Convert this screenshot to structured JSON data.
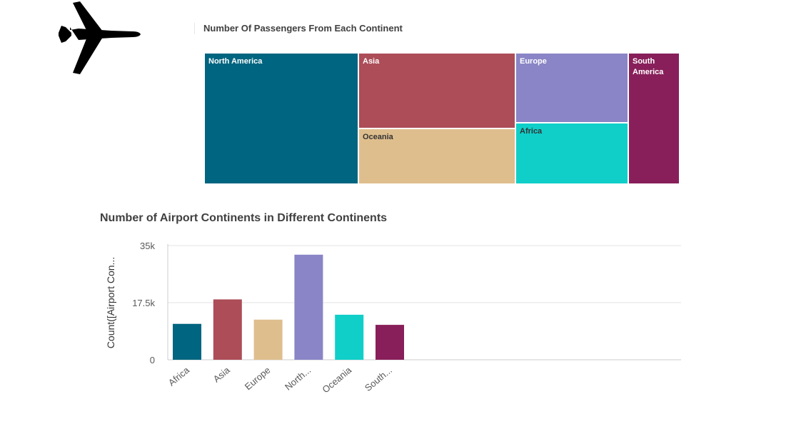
{
  "logo": {
    "icon": "airplane-icon"
  },
  "treemap": {
    "title": "Number Of Passengers From Each Continent",
    "tiles": [
      {
        "name": "North America",
        "line1": "North America",
        "line2": "",
        "color": "#006580",
        "text_color": "#ffffff"
      },
      {
        "name": "Asia",
        "line1": "Asia",
        "line2": "",
        "color": "#ac4d58",
        "text_color": "#ffffff"
      },
      {
        "name": "Oceania",
        "line1": "Oceania",
        "line2": "",
        "color": "#dfbe8e",
        "text_color": "#333333"
      },
      {
        "name": "Europe",
        "line1": "Europe",
        "line2": "",
        "color": "#8a85c6",
        "text_color": "#ffffff"
      },
      {
        "name": "Africa",
        "line1": "Africa",
        "line2": "",
        "color": "#10cfc9",
        "text_color": "#333333"
      },
      {
        "name": "South America",
        "line1": "South",
        "line2": "America",
        "color": "#881f5a",
        "text_color": "#ffffff"
      }
    ]
  },
  "chart_data": {
    "type": "bar",
    "title": "Number of Airport Continents in Different Continents",
    "ylabel": "Count([Airport Con...",
    "xlabel": "",
    "categories": [
      "Africa",
      "Asia",
      "Europe",
      "North...",
      "Oceania",
      "South..."
    ],
    "values": [
      11000,
      18500,
      12300,
      32200,
      13800,
      10700
    ],
    "colors": [
      "#006580",
      "#ac4d58",
      "#dfbe8e",
      "#8a85c6",
      "#10cfc9",
      "#881f5a"
    ],
    "yticks": [
      0,
      17500,
      35000
    ],
    "ytick_labels": [
      "0",
      "17.5k",
      "35k"
    ],
    "ylim": [
      0,
      35000
    ],
    "grid": true
  }
}
